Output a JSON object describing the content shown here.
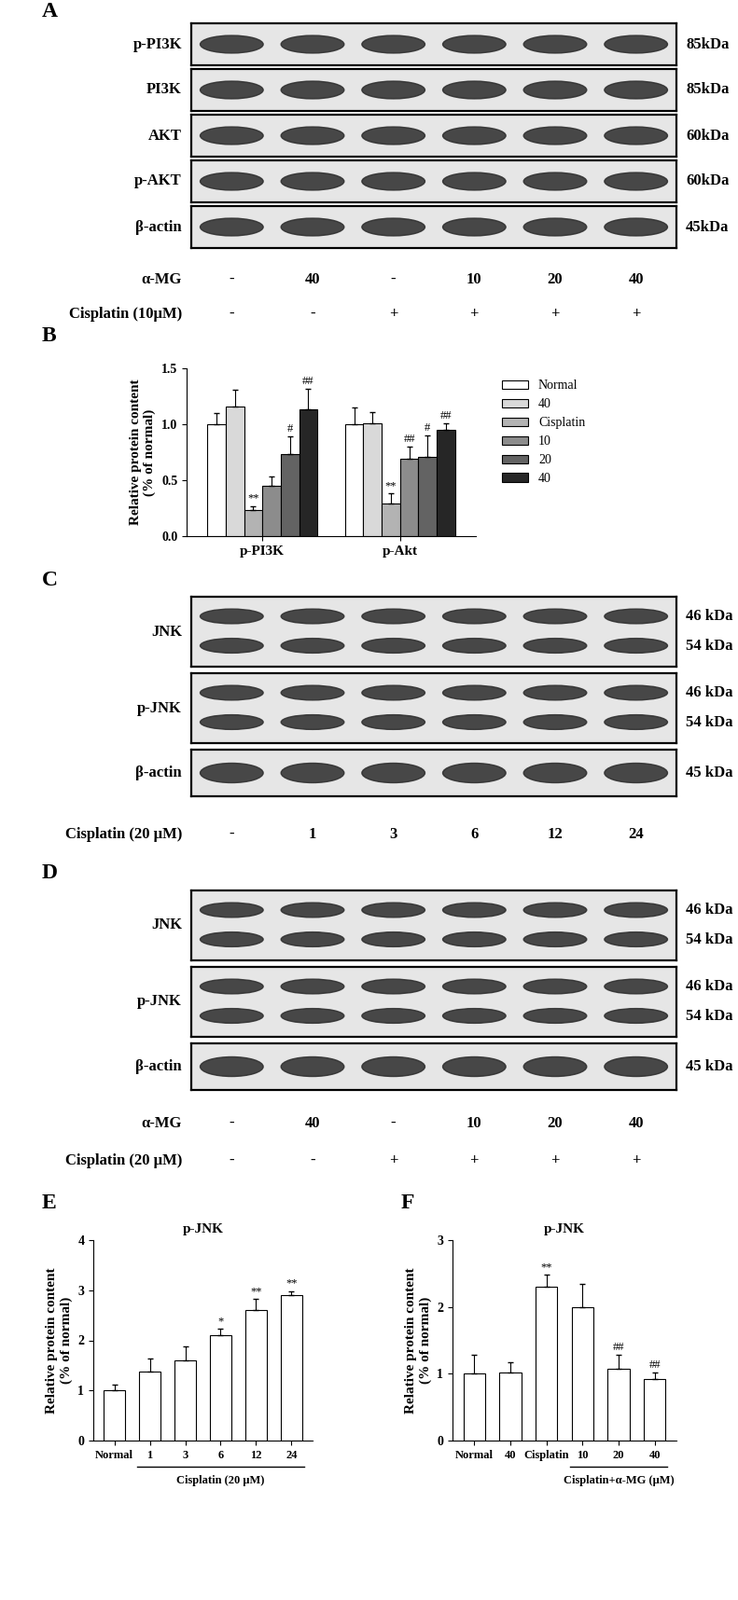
{
  "blots": [
    {
      "panel": "A",
      "rows": [
        {
          "label": "p-PI3K",
          "sizes": [
            "85kDa"
          ]
        },
        {
          "label": "PI3K",
          "sizes": [
            "85kDa"
          ]
        },
        {
          "label": "AKT",
          "sizes": [
            "60kDa"
          ]
        },
        {
          "label": "p-AKT",
          "sizes": [
            "60kDa"
          ]
        },
        {
          "label": "β-actin",
          "sizes": [
            "45kDa"
          ]
        }
      ],
      "conditions": [
        {
          "name": "α-MG",
          "values": [
            "-",
            "40",
            "-",
            "10",
            "20",
            "40"
          ]
        },
        {
          "name": "Cisplatin (10μM)",
          "values": [
            "-",
            "-",
            "+",
            "+",
            "+",
            "+"
          ]
        }
      ]
    },
    {
      "panel": "C",
      "rows": [
        {
          "label": "JNK",
          "sizes": [
            "46 kDa",
            "54 kDa"
          ]
        },
        {
          "label": "p-JNK",
          "sizes": [
            "46 kDa",
            "54 kDa"
          ]
        },
        {
          "label": "β-actin",
          "sizes": [
            "45 kDa"
          ]
        }
      ],
      "conditions": [
        {
          "name": "Cisplatin (20 μM)",
          "values": [
            "-",
            "1",
            "3",
            "6",
            "12",
            "24"
          ]
        }
      ]
    },
    {
      "panel": "D",
      "rows": [
        {
          "label": "JNK",
          "sizes": [
            "46 kDa",
            "54 kDa"
          ]
        },
        {
          "label": "p-JNK",
          "sizes": [
            "46 kDa",
            "54 kDa"
          ]
        },
        {
          "label": "β-actin",
          "sizes": [
            "45 kDa"
          ]
        }
      ],
      "conditions": [
        {
          "name": "α-MG",
          "values": [
            "-",
            "40",
            "-",
            "10",
            "20",
            "40"
          ]
        },
        {
          "name": "Cisplatin (20 μM)",
          "values": [
            "-",
            "-",
            "+",
            "+",
            "+",
            "+"
          ]
        }
      ]
    }
  ],
  "chart_data": [
    {
      "panel": "B",
      "type": "bar",
      "ylabel": "Relative protein content\n(% of normal)",
      "categories": [
        "p-PI3K",
        "p-Akt"
      ],
      "series": [
        {
          "name": "Normal",
          "color": "#ffffff",
          "values": [
            1.0,
            1.0
          ],
          "errors": [
            0.1,
            0.15
          ],
          "significance": [
            null,
            null
          ]
        },
        {
          "name": "40",
          "color": "#d9d9d9",
          "values": [
            1.16,
            1.01
          ],
          "errors": [
            0.15,
            0.1
          ],
          "significance": [
            null,
            null
          ]
        },
        {
          "name": "Cisplatin",
          "color": "#b3b3b3",
          "values": [
            0.23,
            0.29
          ],
          "errors": [
            0.04,
            0.09
          ],
          "significance": [
            "**",
            "**"
          ]
        },
        {
          "name": "10",
          "color": "#8c8c8c",
          "values": [
            0.45,
            0.69
          ],
          "errors": [
            0.08,
            0.11
          ],
          "significance": [
            null,
            "##"
          ]
        },
        {
          "name": "20",
          "color": "#636363",
          "values": [
            0.73,
            0.71
          ],
          "errors": [
            0.16,
            0.19
          ],
          "significance": [
            "#",
            "#"
          ]
        },
        {
          "name": "40",
          "color": "#262626",
          "values": [
            1.13,
            0.95
          ],
          "errors": [
            0.19,
            0.06
          ],
          "significance": [
            "##",
            "##"
          ]
        }
      ],
      "ylim": [
        0,
        1.5
      ],
      "yticks": [
        {
          "value": 0,
          "label": "0.0"
        },
        0.5,
        {
          "value": 1,
          "label": "1.0"
        },
        1.5
      ],
      "legend": "right"
    },
    {
      "panel": "E",
      "type": "bar",
      "title": "p-JNK",
      "ylabel": "Relative protein content\n(% of normal)",
      "categories": [
        "Normal",
        "1",
        "3",
        "6",
        "12",
        "24"
      ],
      "values": [
        1.0,
        1.38,
        1.6,
        2.1,
        2.6,
        2.9
      ],
      "errors": [
        0.12,
        0.25,
        0.27,
        0.13,
        0.22,
        0.08
      ],
      "significance": [
        null,
        null,
        null,
        "*",
        "**",
        "**"
      ],
      "color": "#ffffff",
      "group": {
        "label": "Cisplatin (20 μM)",
        "first": 1,
        "last": 5
      },
      "ylim": [
        0,
        4
      ],
      "yticks": [
        0,
        1,
        2,
        3,
        4
      ]
    },
    {
      "panel": "F",
      "type": "bar",
      "title": "p-JNK",
      "ylabel": "Relative protein content\n(% of normal)",
      "categories": [
        "Normal",
        "40",
        "Cisplatin",
        "10",
        "20",
        "40"
      ],
      "values": [
        1.0,
        1.02,
        2.3,
        2.0,
        1.08,
        0.92
      ],
      "errors": [
        0.28,
        0.15,
        0.18,
        0.35,
        0.2,
        0.1
      ],
      "significance": [
        null,
        null,
        "**",
        null,
        "##",
        "##"
      ],
      "color": "#ffffff",
      "group": {
        "label": "Cisplatin+α-MG (μM)",
        "first": 3,
        "last": 5
      },
      "ylim": [
        0,
        3
      ],
      "yticks": [
        0,
        1,
        2,
        3
      ]
    }
  ]
}
